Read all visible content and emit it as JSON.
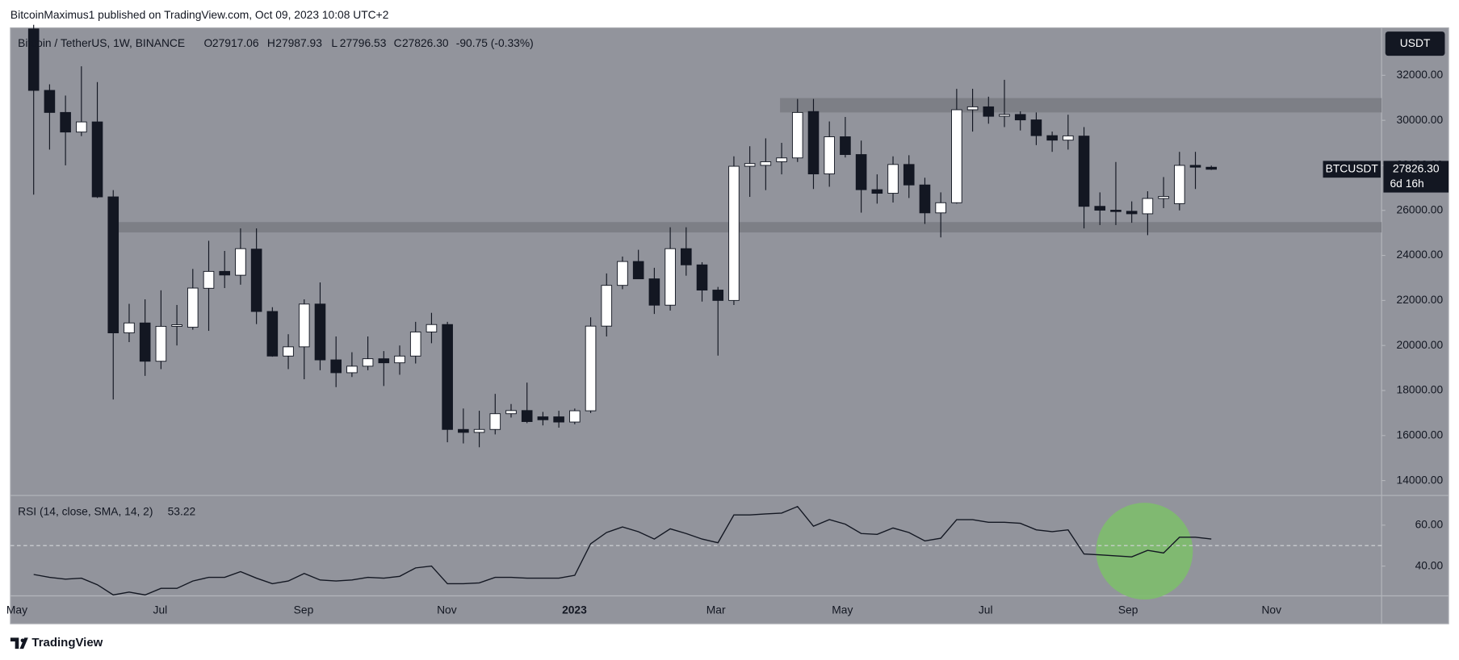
{
  "header": {
    "publisher": "BitcoinMaximus1 published on TradingView.com, Oct 09, 2023 10:08 UTC+2"
  },
  "chart_data": [
    {
      "type": "candlestick",
      "title": "Bitcoin / TetherUS, 1W, BINANCE",
      "legend": {
        "o_label": "O",
        "o": "27917.06",
        "h_label": "H",
        "h": "27987.93",
        "l_label": "L",
        "l": "27796.53",
        "c_label": "C",
        "c": "27826.30",
        "change": "-90.75 (-0.33%)"
      },
      "currency": "USDT",
      "last_price": {
        "symbol": "BTCUSDT",
        "value": "27826.30",
        "countdown": "6d 16h"
      },
      "color_up": "#ffffff",
      "color_down": "#131722",
      "x": [
        0,
        1,
        2,
        3,
        4,
        5,
        6,
        7,
        8,
        9,
        10,
        11,
        12,
        13,
        14,
        15,
        16,
        17,
        18,
        19,
        20,
        21,
        22,
        23,
        24,
        25,
        26,
        27,
        28,
        29,
        30,
        31,
        32,
        33,
        34,
        35,
        36,
        37,
        38,
        39,
        40,
        41,
        42,
        43,
        44,
        45,
        46,
        47,
        48,
        49,
        50,
        51,
        52,
        53,
        54,
        55,
        56,
        57,
        58,
        59,
        60,
        61,
        62,
        63,
        64,
        65,
        66,
        67,
        68,
        69,
        70,
        71,
        72,
        73,
        74
      ],
      "open": [
        34060,
        31330,
        30350,
        29480,
        29930,
        26600,
        20560,
        21000,
        19300,
        20850,
        20810,
        22540,
        23290,
        23120,
        24280,
        21510,
        19530,
        19940,
        21840,
        19360,
        18790,
        19080,
        19410,
        19230,
        19530,
        20600,
        20930,
        16270,
        16140,
        16270,
        16970,
        17110,
        16830,
        16830,
        16600,
        17100,
        20860,
        22670,
        23730,
        22960,
        21790,
        24300,
        23580,
        22460,
        22000,
        27960,
        28000,
        28160,
        28330,
        30390,
        27620,
        29270,
        28480,
        26920,
        26760,
        28040,
        27130,
        25890,
        26340,
        30470,
        30600,
        30180,
        30260,
        30020,
        29320,
        29120,
        29300,
        26180,
        26010,
        25960,
        25850,
        26530,
        26300,
        28000,
        27917.06
      ],
      "high": [
        34243,
        31600,
        31100,
        32400,
        31700,
        26900,
        21850,
        22050,
        22450,
        21800,
        23400,
        24650,
        24200,
        25200,
        25200,
        21700,
        20500,
        22050,
        22800,
        20400,
        19700,
        20400,
        19750,
        20000,
        21050,
        21450,
        21050,
        17200,
        17100,
        17850,
        17400,
        18350,
        17050,
        17100,
        17200,
        21250,
        23200,
        23950,
        24250,
        23450,
        25250,
        25250,
        23700,
        22600,
        28400,
        28850,
        29200,
        29000,
        30950,
        30950,
        29950,
        30150,
        29100,
        27600,
        28400,
        28450,
        27450,
        26800,
        31400,
        31400,
        31050,
        31800,
        30400,
        30350,
        29500,
        30250,
        29700,
        26800,
        28150,
        26400,
        26850,
        27480,
        28600,
        28600,
        27987.93
      ],
      "low": [
        26700,
        28700,
        28000,
        29300,
        26550,
        17600,
        20150,
        18650,
        18950,
        20000,
        20700,
        20650,
        22550,
        22700,
        20950,
        19500,
        18950,
        18500,
        18900,
        18150,
        18600,
        18900,
        18200,
        18700,
        19200,
        20100,
        15700,
        15650,
        15480,
        16050,
        16800,
        16550,
        16450,
        16350,
        16500,
        17000,
        20400,
        22500,
        22950,
        21400,
        21550,
        23100,
        21950,
        19550,
        21800,
        26600,
        26900,
        27600,
        28150,
        26950,
        27050,
        28350,
        25900,
        26300,
        26350,
        26550,
        25400,
        24800,
        26300,
        29500,
        29850,
        29700,
        29550,
        28900,
        28600,
        28700,
        25200,
        25350,
        25350,
        25450,
        24900,
        26100,
        26000,
        26950,
        27796.53
      ],
      "close": [
        31330,
        30350,
        29480,
        29930,
        26600,
        20560,
        21000,
        19300,
        20850,
        20920,
        22550,
        23290,
        23130,
        24300,
        21510,
        19530,
        19940,
        21840,
        19360,
        18790,
        19080,
        19410,
        19230,
        19530,
        20600,
        20930,
        16270,
        16140,
        16270,
        16970,
        17110,
        16620,
        16700,
        16600,
        17100,
        20860,
        22670,
        23730,
        22960,
        21790,
        24300,
        23580,
        22460,
        22000,
        27960,
        28080,
        28160,
        28330,
        30350,
        27620,
        29270,
        28480,
        26920,
        26760,
        28040,
        27130,
        25890,
        26340,
        30470,
        30600,
        30180,
        30260,
        30020,
        29320,
        29120,
        29310,
        26180,
        26010,
        25960,
        25850,
        26530,
        26620,
        28000,
        27920,
        27826.3
      ],
      "zones": [
        {
          "from": 30350,
          "to": 30990,
          "start": 46.9
        },
        {
          "from": 25020,
          "to": 25480,
          "start": 4.97
        }
      ],
      "zone_color": "#7d7f86",
      "xlim": [
        -1.46,
        84.7
      ],
      "xticks": [
        {
          "value": -1.05,
          "label": "May"
        },
        {
          "value": 7.95,
          "label": "Jul"
        },
        {
          "value": 16.96,
          "label": "Sep"
        },
        {
          "value": 25.96,
          "label": "Nov"
        },
        {
          "value": 33.98,
          "label": "2023"
        },
        {
          "value": 42.87,
          "label": "Mar"
        },
        {
          "value": 50.82,
          "label": "May"
        },
        {
          "value": 59.82,
          "label": "Jul"
        },
        {
          "value": 68.77,
          "label": "Sep"
        },
        {
          "value": 77.78,
          "label": "Nov"
        }
      ],
      "ylim": [
        13338,
        34106
      ],
      "yticks": [
        {
          "value": 14000,
          "label": "14000.00"
        },
        {
          "value": 16000,
          "label": "16000.00"
        },
        {
          "value": 18000,
          "label": "18000.00"
        },
        {
          "value": 20000,
          "label": "20000.00"
        },
        {
          "value": 22000,
          "label": "22000.00"
        },
        {
          "value": 24000,
          "label": "24000.00"
        },
        {
          "value": 26000,
          "label": "26000.00"
        },
        {
          "value": 28000,
          "label": "28000.00"
        },
        {
          "value": 30000,
          "label": "30000.00"
        },
        {
          "value": 32000,
          "label": "32000.00"
        }
      ],
      "grid": false
    },
    {
      "type": "line",
      "title": "RSI (14, close, SMA, 14, 2)",
      "value_label": "53.22",
      "color": "#131722",
      "x": [
        0,
        1,
        2,
        3,
        4,
        5,
        6,
        7,
        8,
        9,
        10,
        11,
        12,
        13,
        14,
        15,
        16,
        17,
        18,
        19,
        20,
        21,
        22,
        23,
        24,
        25,
        26,
        27,
        28,
        29,
        30,
        31,
        32,
        33,
        34,
        35,
        36,
        37,
        38,
        39,
        40,
        41,
        42,
        43,
        44,
        45,
        46,
        47,
        48,
        49,
        50,
        51,
        52,
        53,
        54,
        55,
        56,
        57,
        58,
        59,
        60,
        61,
        62,
        63,
        64,
        65,
        66,
        67,
        68,
        69,
        70,
        71,
        72,
        73,
        74
      ],
      "values": [
        35.9,
        34.5,
        33.6,
        34.1,
        30.9,
        25.9,
        27.3,
        25.9,
        29.1,
        29.1,
        32.7,
        34.5,
        34.5,
        37.3,
        34.1,
        31.4,
        32.7,
        36.4,
        33.2,
        32.7,
        33.2,
        34.5,
        34.1,
        35.0,
        39.1,
        40.0,
        31.4,
        31.4,
        31.8,
        34.5,
        34.5,
        34.1,
        34.1,
        34.1,
        35.5,
        50.9,
        56.4,
        59.1,
        56.8,
        53.2,
        58.2,
        55.9,
        53.2,
        51.4,
        65.0,
        65.0,
        65.5,
        65.9,
        69.1,
        59.5,
        62.7,
        60.5,
        55.9,
        55.5,
        58.6,
        56.4,
        52.3,
        53.6,
        62.7,
        62.7,
        61.4,
        61.4,
        60.9,
        57.7,
        56.8,
        57.7,
        45.9,
        45.5,
        45.0,
        44.5,
        47.7,
        46.4,
        54.1,
        54.1,
        53.22
      ],
      "midline": 50,
      "highlight": {
        "x": 69.8,
        "y": 47.3,
        "color": "#7dbf6a"
      },
      "xlim": [
        -1.46,
        84.7
      ],
      "ylim": [
        25.45,
        74.5
      ],
      "yticks": [
        {
          "value": 40,
          "label": "40.00"
        },
        {
          "value": 60,
          "label": "60.00"
        }
      ],
      "grid": false
    }
  ],
  "footer": {
    "brand": "TradingView"
  }
}
